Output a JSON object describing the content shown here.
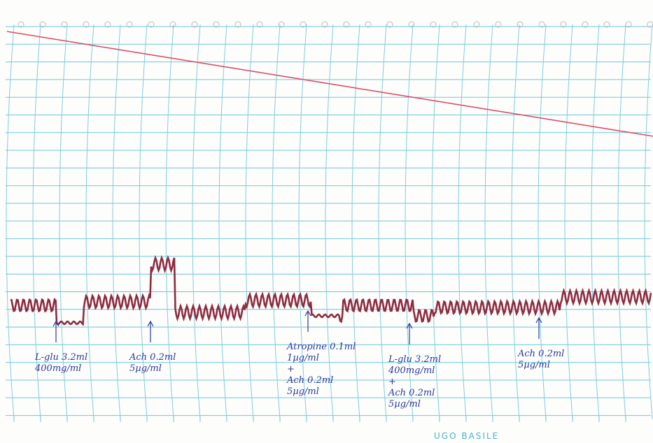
{
  "annotations": [
    {
      "lines": [
        "L-glu 3.2ml",
        "400mg/ml"
      ]
    },
    {
      "lines": [
        "Ach 0.2ml",
        "5µg/ml"
      ]
    },
    {
      "lines": [
        "Atropine 0.1ml",
        "1µg/ml",
        "+",
        "Ach 0.2ml",
        "5µg/ml"
      ]
    },
    {
      "lines": [
        "L-glu 3.2ml",
        "400mg/ml",
        "+",
        "Ach 0.2ml",
        "5µg/ml"
      ]
    },
    {
      "lines": [
        "Ach 0.2ml",
        "5µg/ml"
      ]
    }
  ],
  "footer": {
    "brand": "UGO BASILE"
  }
}
